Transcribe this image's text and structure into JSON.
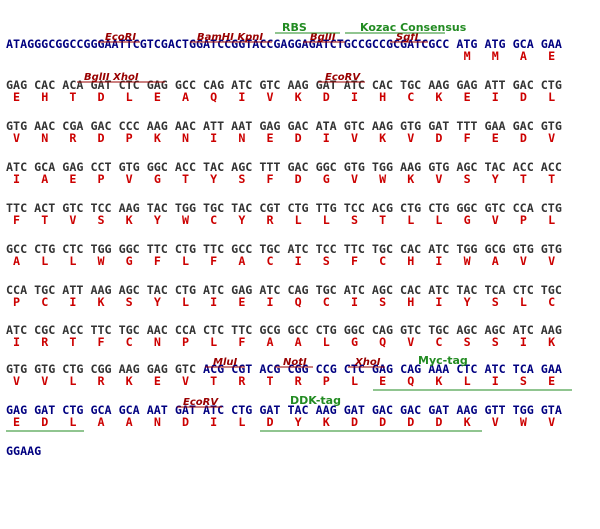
{
  "lines": [
    {
      "dna": [
        {
          "text": "ATAGGGCGGCCGGGAATTCGTCGACTGGATCCGGTACCGAGGAGATCTGCCGCCGCGATCGCC ATG ATG GCA GAA",
          "color": "#000080"
        }
      ],
      "protein": [
        "M",
        "M",
        "A",
        "E"
      ]
    },
    {
      "dna": [
        {
          "text": "GAG CAC ACA GAT CTC GAG GCC CAG ATC GTC AAG GAT ATC CAC TGC AAG GAG ATT GAC CTG",
          "color": "#333333"
        }
      ],
      "protein": [
        "E",
        "H",
        "T",
        "D",
        "L",
        "E",
        "A",
        "Q",
        "I",
        "V",
        "K",
        "D",
        "I",
        "H",
        "C",
        "K",
        "E",
        "I",
        "D",
        "L"
      ]
    },
    {
      "dna": [
        {
          "text": "GTG AAC CGA GAC CCC AAG AAC ATT AAT GAG GAC ATA GTC AAG GTG GAT TTT GAA GAC GTG",
          "color": "#333333"
        }
      ],
      "protein": [
        "V",
        "N",
        "R",
        "D",
        "P",
        "K",
        "N",
        "I",
        "N",
        "E",
        "D",
        "I",
        "V",
        "K",
        "V",
        "D",
        "F",
        "E",
        "D",
        "V"
      ]
    },
    {
      "dna": [
        {
          "text": "ATC GCA GAG CCT GTG GGC ACC TAC AGC TTT GAC GGC GTG TGG AAG GTG AGC TAC ACC ACC",
          "color": "#333333"
        }
      ],
      "protein": [
        "I",
        "A",
        "E",
        "P",
        "V",
        "G",
        "T",
        "Y",
        "S",
        "F",
        "D",
        "G",
        "V",
        "W",
        "K",
        "V",
        "S",
        "Y",
        "T",
        "T"
      ]
    },
    {
      "dna": [
        {
          "text": "TTC ACT GTC TCC AAG TAC TGG TGC TAC CGT CTG TTG TCC ACG CTG CTG GGC GTC CCA CTG",
          "color": "#333333"
        }
      ],
      "protein": [
        "F",
        "T",
        "V",
        "S",
        "K",
        "Y",
        "W",
        "C",
        "Y",
        "R",
        "L",
        "L",
        "S",
        "T",
        "L",
        "L",
        "G",
        "V",
        "P",
        "L"
      ]
    },
    {
      "dna": [
        {
          "text": "GCC CTG CTC TGG GGC TTC CTG TTC GCC TGC ATC TCC TTC TGC CAC ATC TGG GCG GTG GTG",
          "color": "#333333"
        }
      ],
      "protein": [
        "A",
        "L",
        "L",
        "W",
        "G",
        "F",
        "L",
        "F",
        "A",
        "C",
        "I",
        "S",
        "F",
        "C",
        "H",
        "I",
        "W",
        "A",
        "V",
        "V"
      ]
    },
    {
      "dna": [
        {
          "text": "CCA TGC ATT AAG AGC TAC CTG ATC GAG ATC CAG TGC ATC AGC CAC ATC TAC TCA CTC TGC",
          "color": "#333333"
        }
      ],
      "protein": [
        "P",
        "C",
        "I",
        "K",
        "S",
        "Y",
        "L",
        "I",
        "E",
        "I",
        "Q",
        "C",
        "I",
        "S",
        "H",
        "I",
        "Y",
        "S",
        "L",
        "C"
      ]
    },
    {
      "dna": [
        {
          "text": "ATC CGC ACC TTC TGC AAC CCA CTC TTC GCG GCC CTG GGC CAG GTC TGC AGC AGC ATC AAG",
          "color": "#333333"
        }
      ],
      "protein": [
        "I",
        "R",
        "T",
        "F",
        "C",
        "N",
        "P",
        "L",
        "F",
        "A",
        "A",
        "L",
        "G",
        "Q",
        "V",
        "C",
        "S",
        "S",
        "I",
        "K"
      ]
    },
    {
      "dna": [
        {
          "text": "GTG GTG CTG CGG AAG GAG GTC",
          "color": "#333333"
        },
        {
          "text": "ACG CGT ACG CGG CCG CTC GAG CAG AAA CTC ATC TCA GAA",
          "color": "#000080"
        }
      ],
      "protein": [
        "V",
        "V",
        "L",
        "R",
        "K",
        "E",
        "V",
        "T",
        "R",
        "T",
        "R",
        "P",
        "L",
        "E",
        "Q",
        "K",
        "L",
        "I",
        "S",
        "E"
      ]
    },
    {
      "dna": [
        {
          "text": "GAG GAT CTG GCA GCA AAT GAT ATC CTG GAT TAC AAG GAT GAC GAC GAT AAG GTT TGG GTA",
          "color": "#000080"
        }
      ],
      "protein": [
        "E",
        "D",
        "L",
        "A",
        "A",
        "N",
        "D",
        "I",
        "L",
        "D",
        "Y",
        "K",
        "D",
        "D",
        "D",
        "D",
        "K",
        "V",
        "W",
        "V"
      ]
    },
    {
      "dna": [
        {
          "text": "GGAAG",
          "color": "#000080"
        }
      ],
      "protein": []
    }
  ],
  "protein_color": "#cc0000",
  "annotations": [
    {
      "text": "EcoRI",
      "color": "#990000"
    },
    {
      "text": "BamHI KpnI",
      "color": "#990000"
    },
    {
      "text": "BglII",
      "color": "#990000"
    },
    {
      "text": "SgfI",
      "color": "#990000"
    },
    {
      "text": "RBS",
      "color": "#228b22"
    },
    {
      "text": "Kozac Consensus",
      "color": "#228b22"
    },
    {
      "text": "BglII XhoI",
      "color": "#990000"
    },
    {
      "text": "EcoRV",
      "color": "#990000"
    },
    {
      "text": "MluI",
      "color": "#990000"
    },
    {
      "text": "NotI",
      "color": "#990000"
    },
    {
      "text": "XhoI",
      "color": "#990000"
    },
    {
      "text": "Myc-tag",
      "color": "#228b22"
    },
    {
      "text": "EcoRV",
      "color": "#990000"
    },
    {
      "text": "DDK-tag",
      "color": "#228b22"
    }
  ]
}
